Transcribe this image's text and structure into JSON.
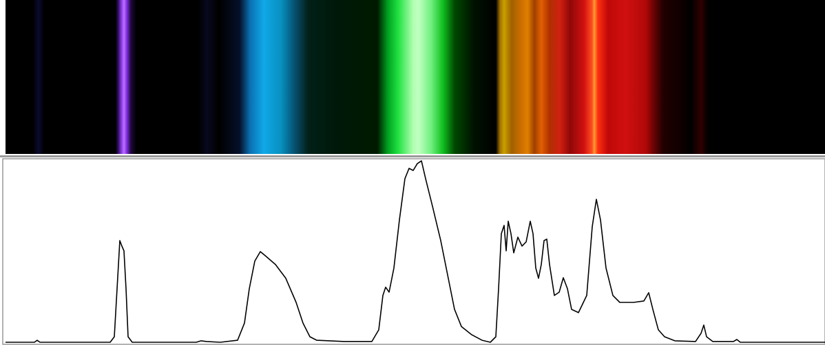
{
  "chart_data": {
    "type": "line",
    "color": "#000000",
    "xlim": [
      0,
      1190
    ],
    "ylim": [
      0,
      100
    ],
    "x": [
      0,
      42,
      46,
      50,
      152,
      158,
      162,
      166,
      169,
      172,
      175,
      178,
      184,
      277,
      284,
      292,
      312,
      337,
      347,
      354,
      362,
      370,
      377,
      392,
      407,
      422,
      432,
      442,
      452,
      492,
      532,
      542,
      548,
      552,
      557,
      564,
      572,
      580,
      586,
      592,
      598,
      604,
      610,
      620,
      632,
      642,
      652,
      662,
      677,
      692,
      704,
      712,
      716,
      720,
      724,
      727,
      730,
      734,
      738,
      744,
      750,
      756,
      762,
      766,
      770,
      774,
      778,
      782,
      786,
      790,
      797,
      804,
      810,
      816,
      822,
      832,
      844,
      852,
      858,
      864,
      872,
      882,
      892,
      912,
      927,
      934,
      940,
      948,
      957,
      972,
      1002,
      1010,
      1014,
      1018,
      1027,
      1057,
      1062,
      1067,
      1190
    ],
    "values": [
      0,
      0,
      1.1,
      0,
      0,
      3.0,
      29.3,
      55.6,
      52.6,
      50.0,
      29.3,
      3.0,
      0,
      0,
      0.8,
      0.4,
      0,
      1.1,
      10.5,
      29.3,
      44.4,
      49.6,
      47.4,
      42.5,
      35.0,
      21.8,
      10.5,
      3.0,
      1.1,
      0.4,
      0.4,
      6.8,
      25.6,
      30.1,
      27.4,
      40.6,
      66.9,
      89.5,
      95.1,
      94.0,
      97.7,
      99.2,
      89.5,
      74.4,
      55.6,
      36.8,
      18.0,
      8.6,
      4.1,
      1.1,
      0,
      3.0,
      29.3,
      59.4,
      63.9,
      50.0,
      66.2,
      59.4,
      48.9,
      57.5,
      52.6,
      54.9,
      66.2,
      59.4,
      40.6,
      35.0,
      42.5,
      55.6,
      56.4,
      42.5,
      25.6,
      27.4,
      35.3,
      29.3,
      18.0,
      16.2,
      25.6,
      63.2,
      78.2,
      66.9,
      40.6,
      25.6,
      21.8,
      21.8,
      22.6,
      27.1,
      18.0,
      6.8,
      3.0,
      0.8,
      0.4,
      4.9,
      9.4,
      3.0,
      0.4,
      0.4,
      1.5,
      0,
      0
    ]
  }
}
